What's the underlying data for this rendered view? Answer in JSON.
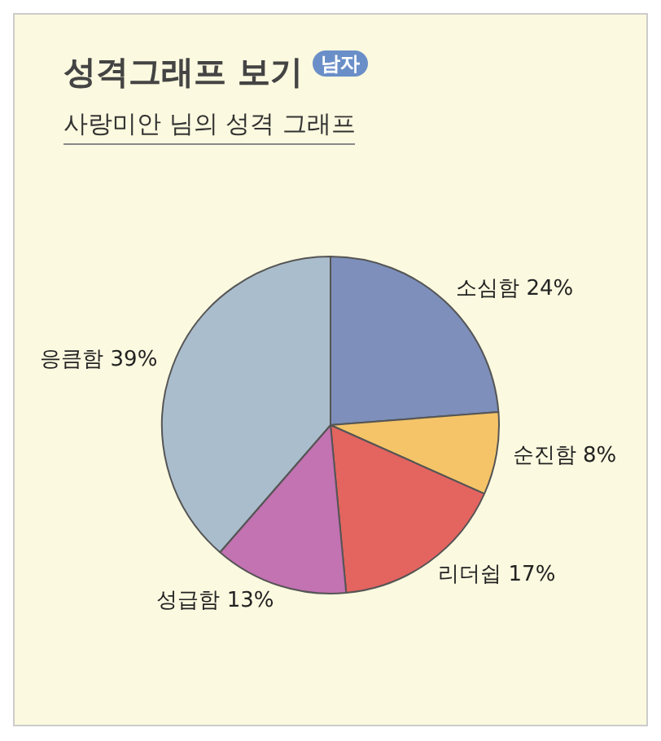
{
  "chart_data": {
    "type": "pie",
    "title": "성격그래프 보기",
    "subtitle": "사랑미안 님의 성격 그래프",
    "annotations": [
      "남자"
    ],
    "categories": [
      "소심함",
      "순진함",
      "리더쉽",
      "성급함",
      "응큼함"
    ],
    "values": [
      24,
      8,
      17,
      13,
      39
    ],
    "value_labels": [
      "24%",
      "8%",
      "17%",
      "13%",
      "39%"
    ],
    "colors": [
      "#7d8fba",
      "#f5c468",
      "#e46460",
      "#c372b2",
      "#aabdcc"
    ],
    "legend": false
  }
}
